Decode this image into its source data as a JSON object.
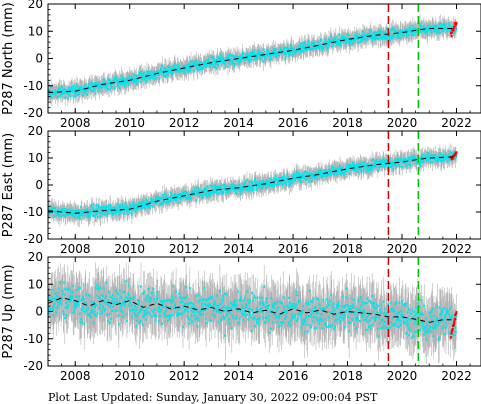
{
  "footer": "Plot Last Updated:   Sunday, January 30, 2022 09:00:04 PST",
  "colors": {
    "errorbar": "#b3b3b3",
    "data": "#00e5ee",
    "fit": "#000000",
    "recent": "#ff0000",
    "line_a": "#d40000",
    "line_b": "#00c000"
  },
  "chart_data": [
    {
      "type": "scatter",
      "title": "",
      "ylabel": "P287 North (mm)",
      "xlabel": "",
      "xlim": [
        2007.0,
        2022.9
      ],
      "ylim": [
        -20,
        20
      ],
      "xticks": [
        2008,
        2010,
        2012,
        2014,
        2016,
        2018,
        2020,
        2022
      ],
      "yticks": [
        -20,
        -10,
        0,
        10,
        20
      ],
      "vlines": [
        {
          "x": 2019.5,
          "color": "red",
          "style": "dashed"
        },
        {
          "x": 2020.6,
          "color": "green",
          "style": "dashed"
        }
      ],
      "fit_series": {
        "x": [
          2007,
          2008,
          2009,
          2010,
          2011,
          2012,
          2013,
          2014,
          2015,
          2016,
          2017,
          2018,
          2019,
          2019.5,
          2020,
          2020.6,
          2021,
          2022
        ],
        "y": [
          -12.5,
          -12,
          -9.5,
          -8,
          -5.5,
          -3.5,
          -1.5,
          0,
          1.5,
          3,
          5,
          7,
          8.5,
          9,
          9.5,
          10.5,
          11,
          11
        ]
      },
      "series": [
        {
          "name": "",
          "x": [
            2007.0,
            2022.0
          ],
          "y": [
            -12.5,
            11
          ],
          "scatter": 1.2,
          "error": 2.8
        }
      ],
      "recent_points": {
        "x": [
          2021.8,
          2022.0
        ],
        "y": [
          9,
          13
        ]
      }
    },
    {
      "type": "scatter",
      "title": "",
      "ylabel": "P287 East (mm)",
      "xlabel": "",
      "xlim": [
        2007.0,
        2022.9
      ],
      "ylim": [
        -20,
        20
      ],
      "xticks": [
        2008,
        2010,
        2012,
        2014,
        2016,
        2018,
        2020,
        2022
      ],
      "yticks": [
        -20,
        -10,
        0,
        10,
        20
      ],
      "vlines": [
        {
          "x": 2019.5,
          "color": "red",
          "style": "dashed"
        },
        {
          "x": 2020.6,
          "color": "green",
          "style": "dashed"
        }
      ],
      "fit_series": {
        "x": [
          2007,
          2008,
          2009,
          2010,
          2011,
          2012,
          2013,
          2014,
          2015,
          2016,
          2017,
          2018,
          2019,
          2019.5,
          2020,
          2020.6,
          2021,
          2022
        ],
        "y": [
          -9.5,
          -10.5,
          -9.5,
          -9,
          -6,
          -4,
          -2,
          -1,
          0.5,
          2.5,
          4,
          6,
          7.5,
          8,
          8.5,
          9.5,
          10,
          10.5
        ]
      },
      "series": [
        {
          "name": "",
          "x": [
            2007.0,
            2022.0
          ],
          "y": [
            -9.5,
            10.5
          ],
          "scatter": 1.2,
          "error": 2.8
        }
      ],
      "recent_points": {
        "x": [
          2021.8,
          2022.0
        ],
        "y": [
          10,
          12
        ]
      }
    },
    {
      "type": "scatter",
      "title": "",
      "ylabel": "P287 Up (mm)",
      "xlabel": "",
      "xlim": [
        2007.0,
        2022.9
      ],
      "ylim": [
        -20,
        20
      ],
      "xticks": [
        2008,
        2010,
        2012,
        2014,
        2016,
        2018,
        2020,
        2022
      ],
      "yticks": [
        -20,
        -10,
        0,
        10,
        20
      ],
      "vlines": [
        {
          "x": 2019.5,
          "color": "red",
          "style": "dashed"
        },
        {
          "x": 2020.6,
          "color": "green",
          "style": "dashed"
        }
      ],
      "fit_series": {
        "x": [
          2007,
          2007.5,
          2008,
          2008.5,
          2009,
          2009.5,
          2010,
          2010.5,
          2011,
          2011.5,
          2012,
          2012.5,
          2013,
          2013.5,
          2014,
          2014.5,
          2015,
          2015.5,
          2016,
          2016.5,
          2017,
          2017.5,
          2018,
          2018.5,
          2019,
          2019.5,
          2020,
          2020.6,
          2021,
          2021.5,
          2022
        ],
        "y": [
          3,
          5,
          4,
          2,
          4,
          2.5,
          4,
          1.5,
          3,
          1,
          2,
          0.5,
          1.5,
          0,
          1,
          -0.5,
          0.5,
          -1,
          1,
          -0.5,
          0.5,
          -1,
          0,
          -0.5,
          -1,
          -2,
          -2,
          -3,
          -4,
          -3,
          -3
        ]
      },
      "series": [
        {
          "name": "",
          "x": [
            2007.0,
            2022.0
          ],
          "y": [
            3,
            -3
          ],
          "scatter": 4.0,
          "error": 7.5
        }
      ],
      "recent_points": {
        "x": [
          2021.8,
          2022.0
        ],
        "y": [
          -9,
          0
        ]
      }
    }
  ]
}
